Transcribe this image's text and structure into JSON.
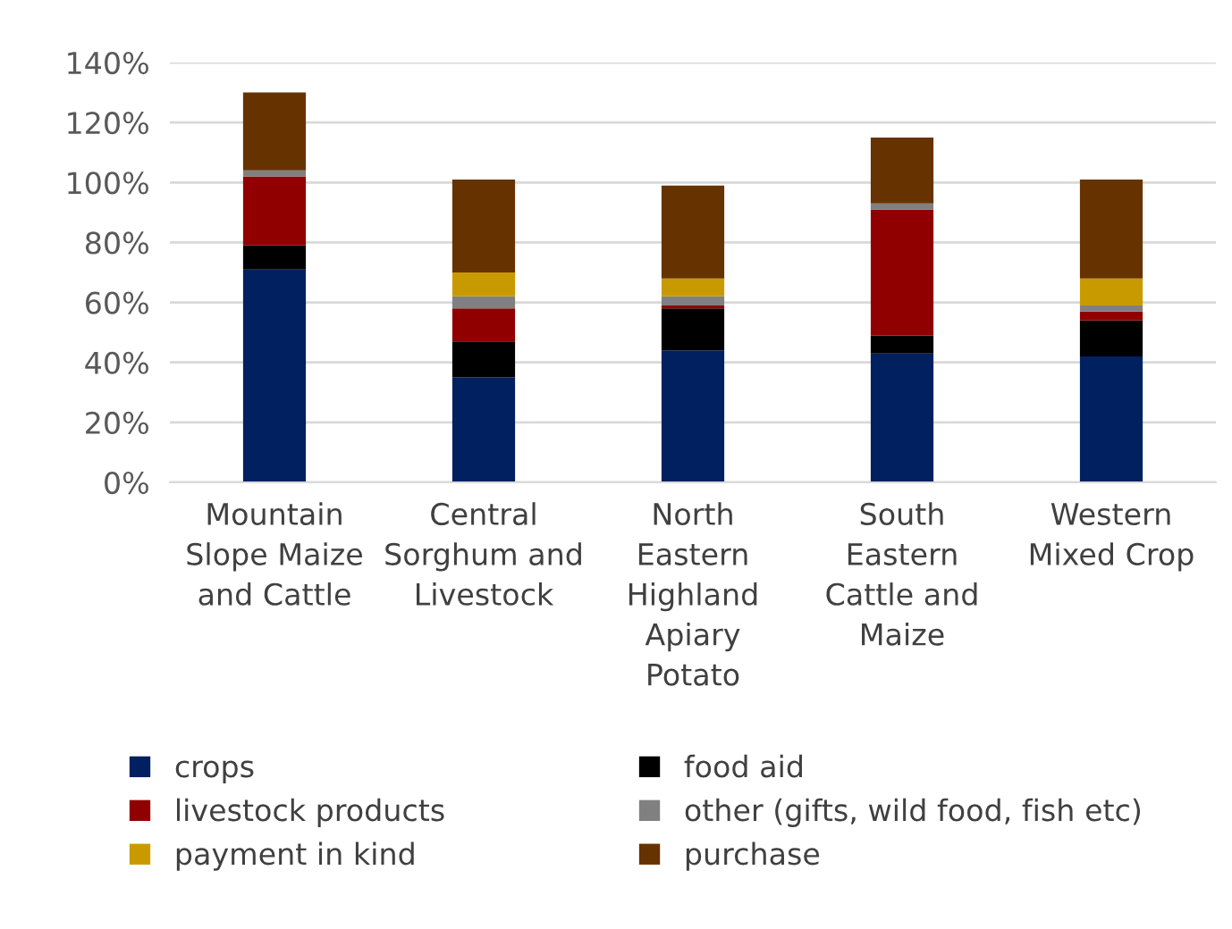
{
  "chart_data": {
    "type": "bar",
    "stacked": true,
    "categories": [
      "Mountain\nSlope Maize\nand Cattle",
      "Central\nSorghum and\nLivestock",
      "North\nEastern\nHighland\nApiary\nPotato",
      "South\nEastern\nCattle and\nMaize",
      "Western\nMixed Crop"
    ],
    "series": [
      {
        "name": "crops",
        "color": "#002060",
        "values": [
          71,
          35,
          44,
          43,
          42
        ]
      },
      {
        "name": "food aid",
        "color": "#000000",
        "values": [
          8,
          12,
          14,
          6,
          12
        ]
      },
      {
        "name": "livestock products",
        "color": "#900000",
        "values": [
          23,
          11,
          1,
          42,
          3
        ]
      },
      {
        "name": "other (gifts, wild food, fish etc)",
        "color": "#808080",
        "values": [
          2,
          4,
          3,
          2,
          2
        ]
      },
      {
        "name": "payment in kind",
        "color": "#c99a00",
        "values": [
          0,
          8,
          6,
          0,
          9
        ]
      },
      {
        "name": "purchase",
        "color": "#663300",
        "values": [
          26,
          31,
          31,
          22,
          33
        ]
      }
    ],
    "ylim": [
      0,
      140
    ],
    "yticks": [
      {
        "value": 0,
        "label": "0%"
      },
      {
        "value": 20,
        "label": "20%"
      },
      {
        "value": 40,
        "label": "40%"
      },
      {
        "value": 60,
        "label": "60%"
      },
      {
        "value": 80,
        "label": "80%"
      },
      {
        "value": 100,
        "label": "100%"
      },
      {
        "value": 120,
        "label": "120%"
      },
      {
        "value": 140,
        "label": "140%"
      }
    ],
    "grid": "y",
    "legend": "bottom"
  }
}
